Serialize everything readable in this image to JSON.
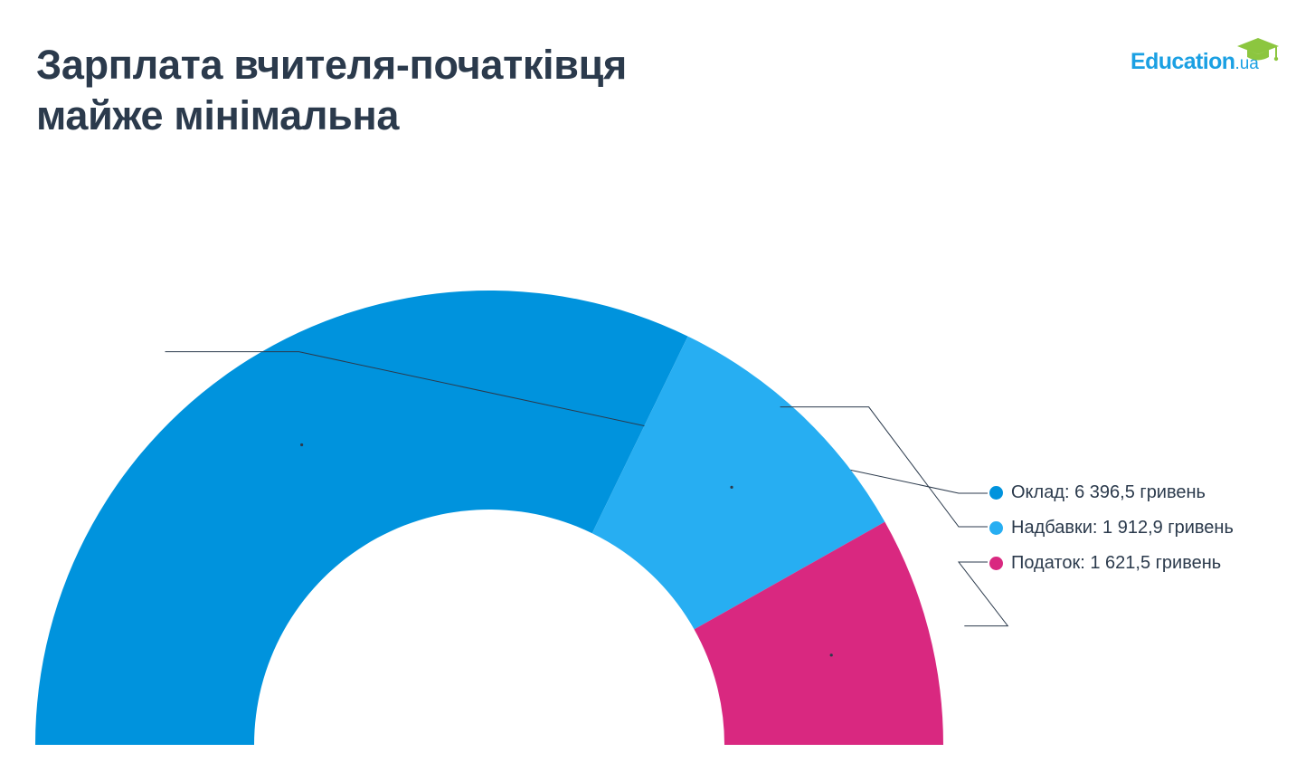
{
  "header": {
    "title_line1": "Зарплата вчителя-початківця",
    "title_line2": "майже мінімальна"
  },
  "logo": {
    "name": "Education",
    "suffix": ".ua",
    "icon": "graduation-cap-icon",
    "color": "#1ba0e3",
    "cap_color": "#8cc63f"
  },
  "chart_data": {
    "type": "pie",
    "variant": "half-donut",
    "title": "Зарплата вчителя-початківця майже мінімальна",
    "unit": "гривень",
    "legend_position": "right",
    "series": [
      {
        "name": "Оклад",
        "value": 6396.5,
        "label": "Оклад: 6 396,5 гривень",
        "color": "#0093dd"
      },
      {
        "name": "Надбавки",
        "value": 1912.9,
        "label": "Надбавки: 1 912,9 гривень",
        "color": "#27aef2"
      },
      {
        "name": "Податок",
        "value": 1621.5,
        "label": "Податок: 1 621,5 гривень",
        "color": "#d92880"
      }
    ]
  }
}
